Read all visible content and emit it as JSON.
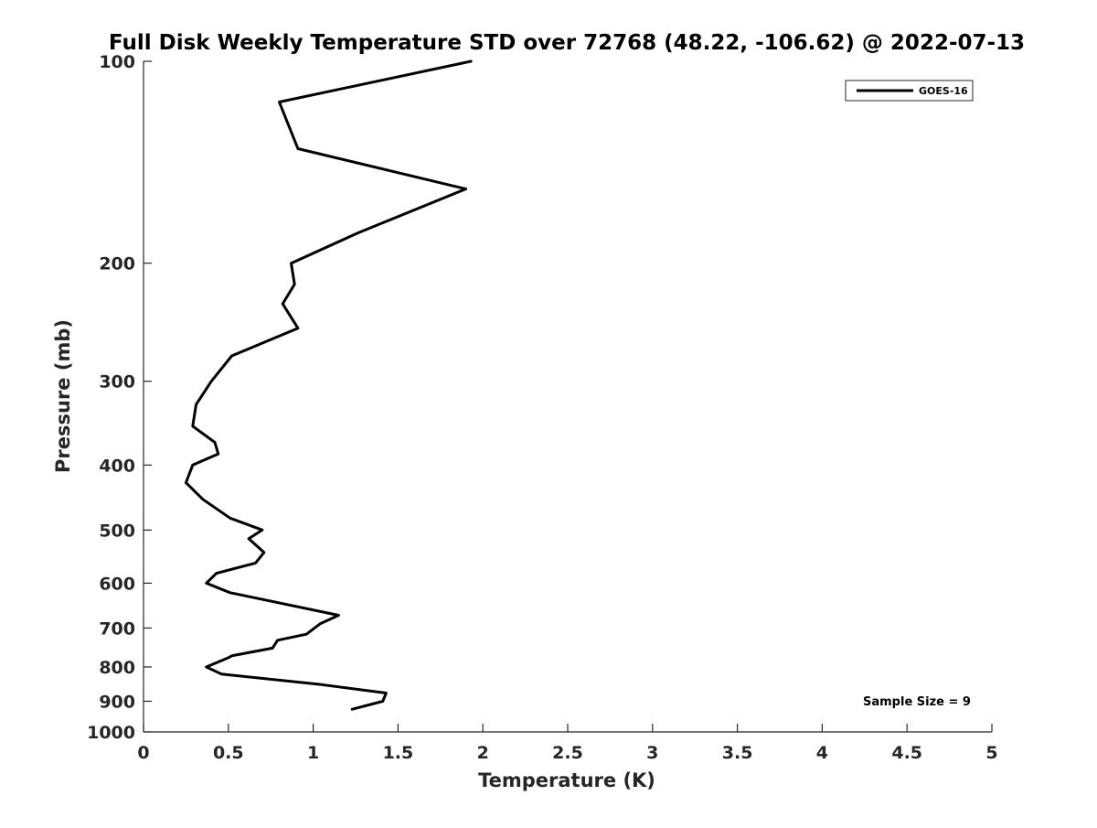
{
  "chart_data": {
    "type": "line",
    "title": "Full Disk Weekly Temperature STD over 72768 (48.22, -106.62) @ 2022-07-13",
    "xlabel": "Temperature (K)",
    "ylabel": "Pressure (mb)",
    "xlim": [
      0,
      5
    ],
    "ylim": [
      100,
      1000
    ],
    "y_scale": "log",
    "y_reversed": true,
    "x_ticks": [
      "0",
      "0.5",
      "1",
      "1.5",
      "2",
      "2.5",
      "3",
      "3.5",
      "4",
      "4.5",
      "5"
    ],
    "y_ticks": [
      "100",
      "200",
      "300",
      "400",
      "500",
      "600",
      "700",
      "800",
      "900",
      "1000"
    ],
    "grid": false,
    "legend": {
      "position": "top-right",
      "entries": [
        "GOES-16"
      ]
    },
    "annotation": "Sample Size = 9",
    "colors": {
      "series": "#000000"
    },
    "series": [
      {
        "name": "GOES-16",
        "x": [
          1.93,
          0.8,
          0.91,
          1.9,
          1.27,
          0.87,
          0.89,
          0.82,
          0.91,
          0.52,
          0.4,
          0.31,
          0.29,
          0.42,
          0.44,
          0.29,
          0.25,
          0.35,
          0.51,
          0.7,
          0.62,
          0.71,
          0.66,
          0.43,
          0.37,
          0.51,
          1.15,
          1.04,
          0.96,
          0.79,
          0.76,
          0.52,
          0.5,
          0.37,
          0.46,
          1.05,
          1.43,
          1.41,
          1.23
        ],
        "y": [
          100,
          115,
          135,
          155,
          180,
          200,
          215,
          230,
          250,
          275,
          300,
          325,
          350,
          370,
          385,
          400,
          425,
          450,
          480,
          500,
          515,
          540,
          560,
          580,
          600,
          620,
          670,
          690,
          715,
          730,
          750,
          770,
          775,
          800,
          820,
          850,
          875,
          900,
          925
        ]
      }
    ]
  }
}
